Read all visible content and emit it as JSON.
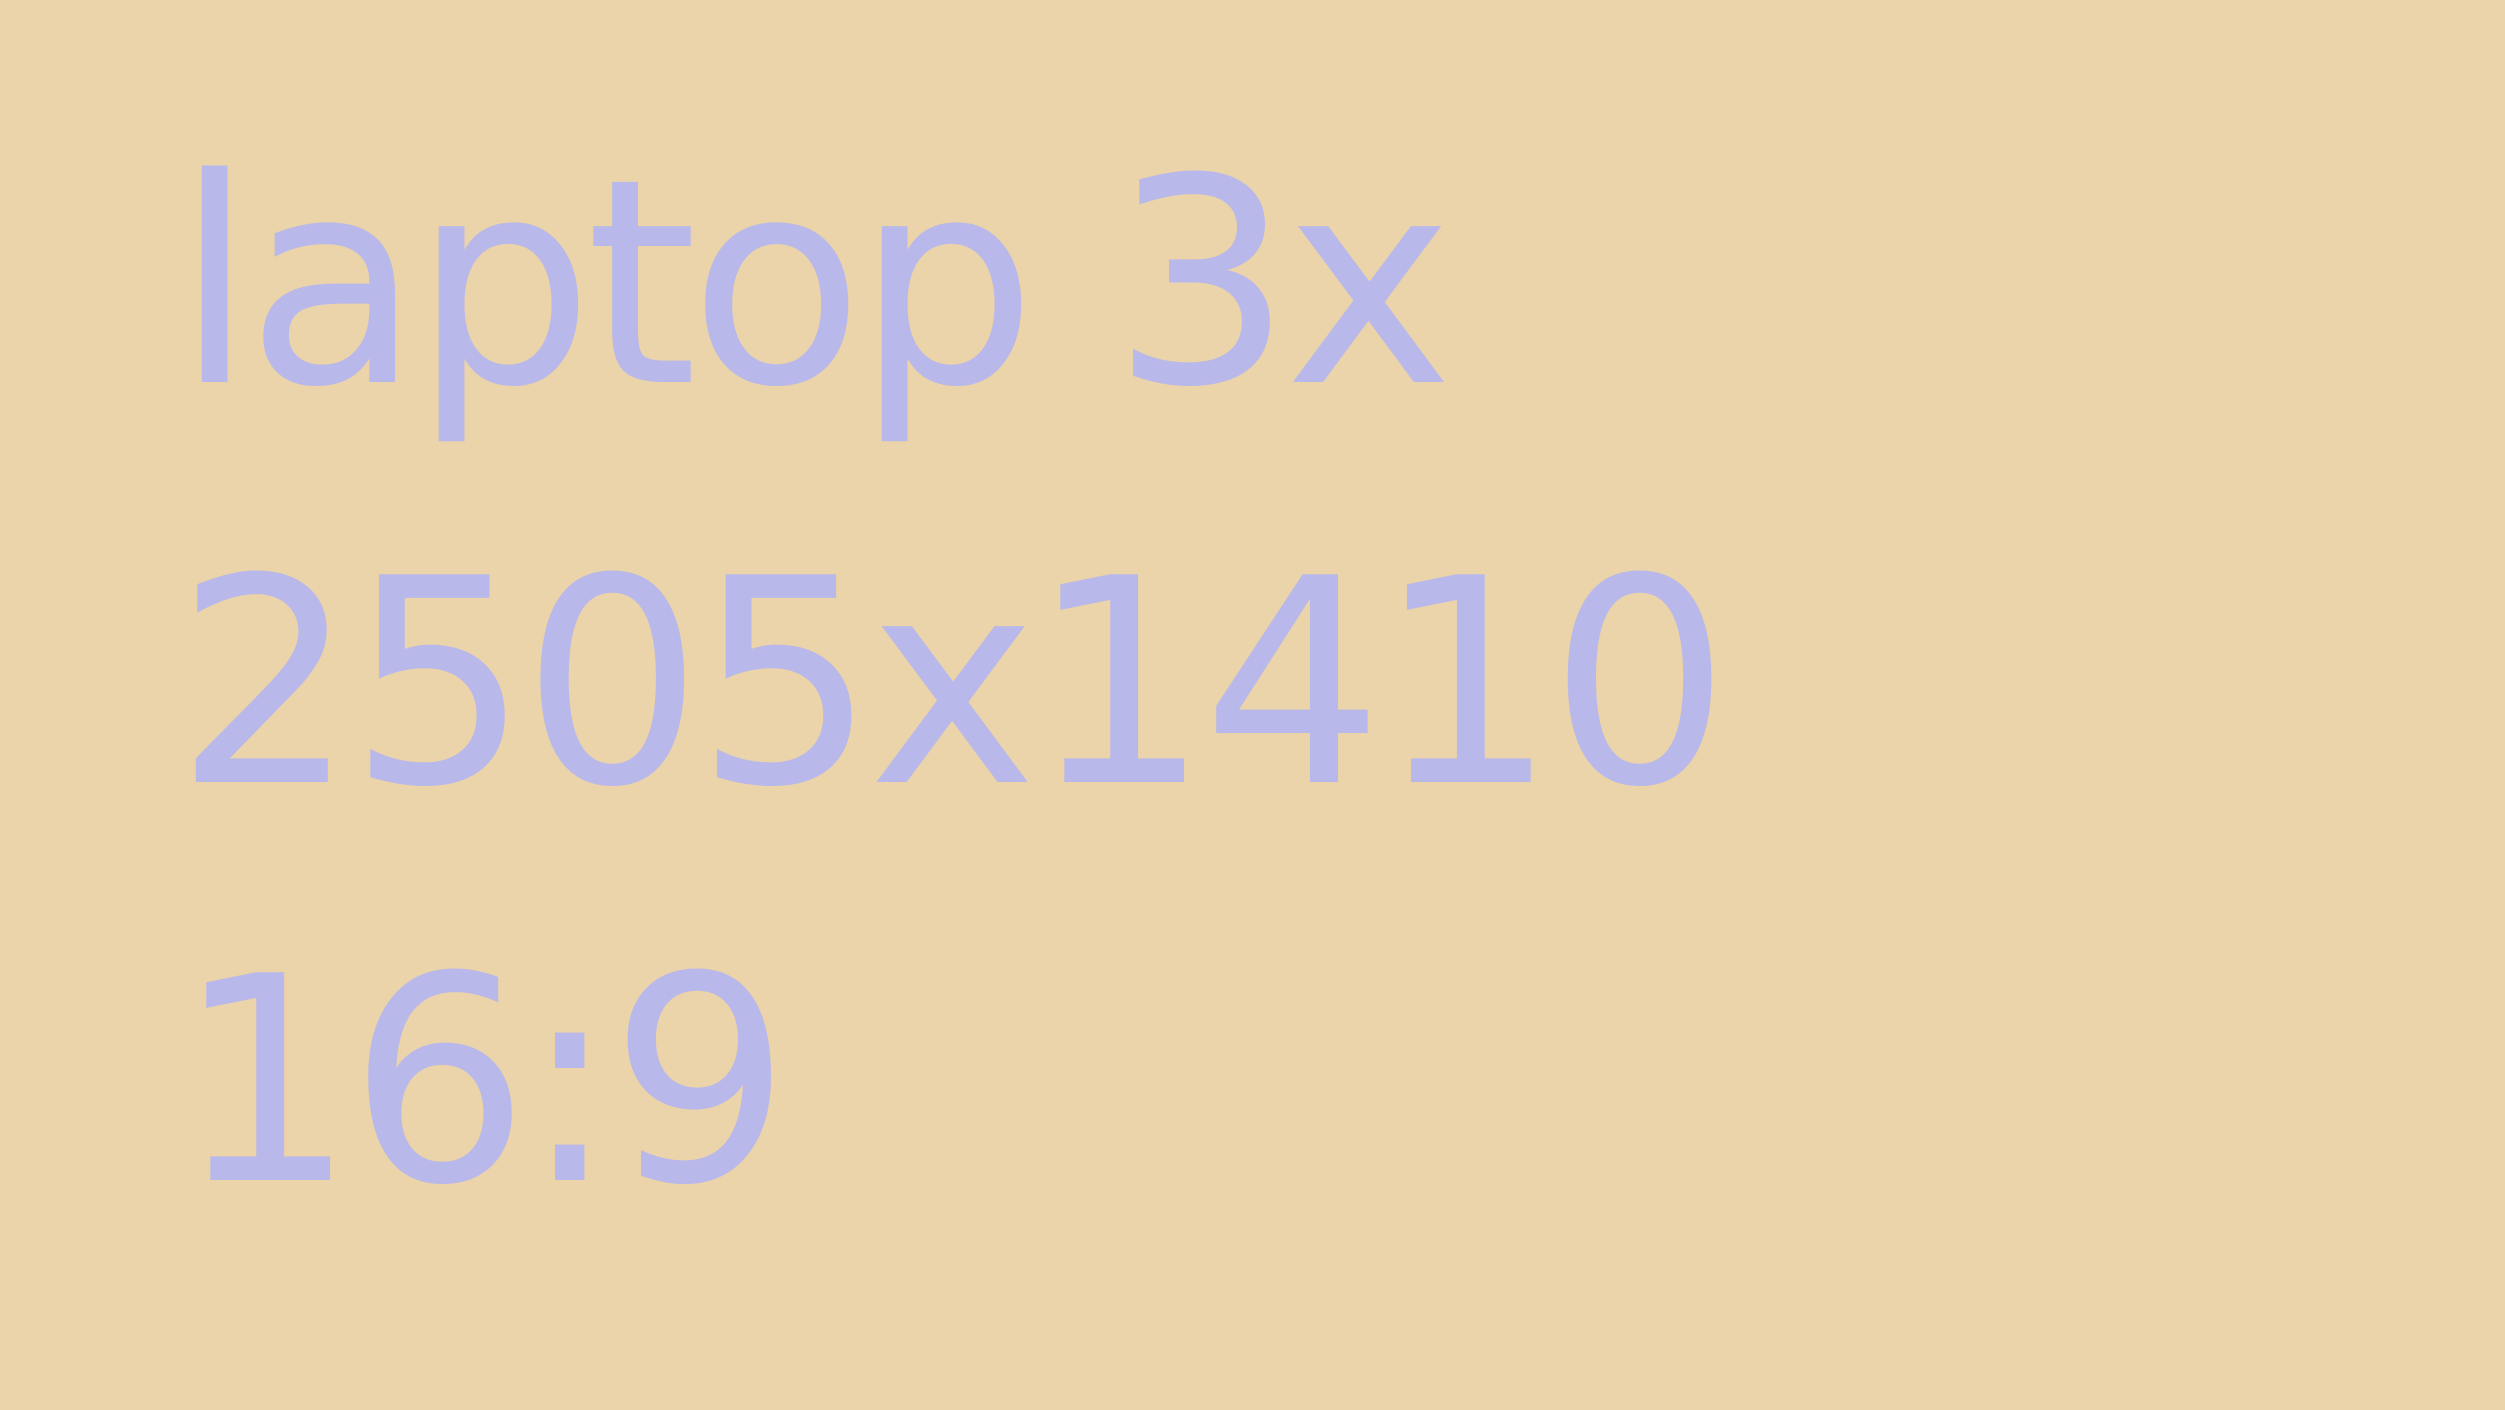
{
  "colors": {
    "background": "#ebd3aa",
    "text": "#b8b8ea"
  },
  "lines": [
    "laptop 3x",
    "2505x1410",
    "16:9"
  ]
}
